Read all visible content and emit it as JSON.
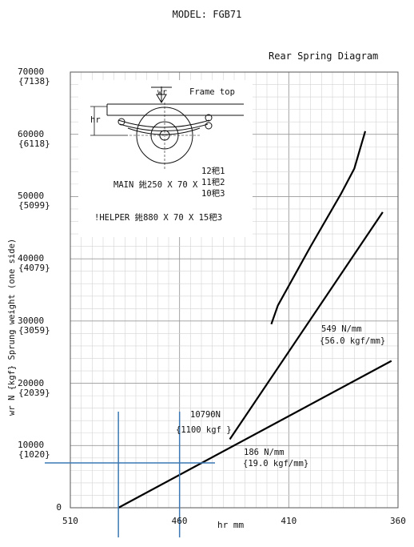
{
  "header": {
    "model": "MODEL: FGB71",
    "diagram_title": "Rear Spring Diagram"
  },
  "inset": {
    "load_label": "wr",
    "frame_label": "Frame top",
    "height_label": "hr",
    "main_spec": "MAIN 𨧀250 X 70 X",
    "main_leaves": [
      "12𥝧1",
      "11𥝧2",
      "10𥝧3"
    ],
    "helper_spec": "!HELPER 𨧀880 X 70 X 15𥝧3"
  },
  "annotations": {
    "rate_main": "549 N/mm",
    "rate_main_kgf": "{56.0 kgf/mm}",
    "rate_soft": "186 N/mm",
    "rate_soft_kgf": "{19.0 kgf/mm}",
    "point_load": "10790N",
    "point_load_kgf": "{1100 kgf }"
  },
  "chart_data": {
    "type": "line",
    "title": "Rear Spring Diagram",
    "xlabel": "hr mm",
    "ylabel": "wr N {kgf}   Sprung weight (one side)",
    "x_reversed": true,
    "xlim": [
      510,
      360
    ],
    "ylim": [
      0,
      70000
    ],
    "x_ticks": [
      "510",
      "460",
      "410",
      "360"
    ],
    "y_ticks": [
      {
        "n": "0",
        "kgf": ""
      },
      {
        "n": "10000",
        "kgf": "{1020}"
      },
      {
        "n": "20000",
        "kgf": "{2039}"
      },
      {
        "n": "30000",
        "kgf": "{3059}"
      },
      {
        "n": "40000",
        "kgf": "{4079}"
      },
      {
        "n": "50000",
        "kgf": "{5099}"
      },
      {
        "n": "60000",
        "kgf": "{6118}"
      },
      {
        "n": "70000",
        "kgf": "{7138}"
      }
    ],
    "grid": true,
    "series": [
      {
        "name": "",
        "x": [
          488,
          363
        ],
        "y": [
          0,
          23600
        ]
      },
      {
        "name": "",
        "x": [
          437,
          367
        ],
        "y": [
          11000,
          47500
        ]
      },
      {
        "name": "",
        "x": [
          418,
          415,
          400,
          386,
          380,
          375
        ],
        "y": [
          29500,
          32500,
          42000,
          50500,
          54500,
          60500
        ]
      }
    ],
    "reference_lines": {
      "x": [
        488,
        460
      ],
      "y": [
        7200
      ]
    }
  }
}
